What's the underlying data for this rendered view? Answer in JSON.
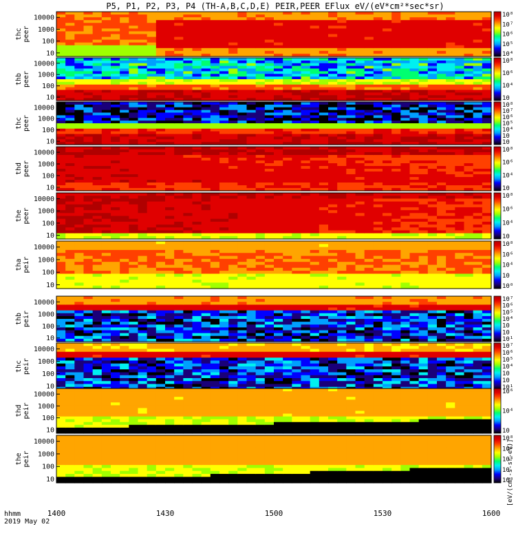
{
  "figure": {
    "title": "P5, P1, P2, P3, P4 (TH-A,B,C,D,E) PEIR,PEER EFlux eV/(eV*cm²*sec*sr)",
    "time_label_1": "hhmm",
    "time_label_2": "2019 May 02",
    "colorbar_unit_label": "[eV/(cm²-s-sr-eV)]",
    "colorbar_unit_label_electrons": "eV/(cm²-s-sr-eV)"
  },
  "colormap": [
    "#000000",
    "#1a007a",
    "#0000ff",
    "#00a0ff",
    "#00f0f0",
    "#00ff70",
    "#a0ff00",
    "#ffff00",
    "#ffa500",
    "#ff4000",
    "#e00000",
    "#b00000"
  ],
  "chart_data": [
    {
      "type": "heatmap",
      "ylabel": "thc\npeer",
      "y_ticks": [
        10,
        100,
        1000,
        10000
      ],
      "ylim": [
        5,
        30000
      ],
      "x_ticks": [
        "1400",
        "1430",
        "1500",
        "1530",
        "1600"
      ],
      "colorbar_ticks": [
        "10⁸",
        "10⁷",
        "10⁶",
        "10⁵",
        "10⁴"
      ],
      "ylog": true
    },
    {
      "type": "heatmap",
      "ylabel": "thb\npeer",
      "y_ticks": [
        10,
        100,
        1000,
        10000
      ],
      "ylim": [
        5,
        30000
      ],
      "x_ticks": [
        "1400",
        "1430",
        "1500",
        "1530",
        "1600"
      ],
      "colorbar_ticks": [
        "10⁸",
        "10⁶",
        "10⁴",
        "10⁲"
      ],
      "ylog": true
    },
    {
      "type": "heatmap",
      "ylabel": "thc\npeer",
      "y_ticks": [
        10,
        100,
        1000,
        10000
      ],
      "ylim": [
        5,
        30000
      ],
      "x_ticks": [
        "1400",
        "1430",
        "1500",
        "1530",
        "1600"
      ],
      "colorbar_ticks": [
        "10⁸",
        "10⁷",
        "10⁶",
        "10⁵",
        "10⁴",
        "10⁳",
        "10⁲"
      ],
      "ylog": true
    },
    {
      "type": "heatmap",
      "ylabel": "thd\npeer",
      "y_ticks": [
        10,
        100,
        1000,
        10000
      ],
      "ylim": [
        5,
        30000
      ],
      "x_ticks": [
        "1400",
        "1430",
        "1500",
        "1530",
        "1600"
      ],
      "colorbar_ticks": [
        "10⁸",
        "10⁶",
        "10⁴",
        "10⁲"
      ],
      "ylog": true
    },
    {
      "type": "heatmap",
      "ylabel": "the\npeer",
      "y_ticks": [
        10,
        100,
        1000,
        10000
      ],
      "ylim": [
        5,
        30000
      ],
      "x_ticks": [
        "1400",
        "1430",
        "1500",
        "1530",
        "1600"
      ],
      "colorbar_ticks": [
        "10⁸",
        "10⁶",
        "10⁴",
        "10⁲"
      ],
      "ylog": true
    },
    {
      "type": "heatmap",
      "ylabel": "tha\npeir",
      "y_ticks": [
        10,
        100,
        1000,
        10000
      ],
      "ylim": [
        5,
        30000
      ],
      "x_ticks": [
        "1400",
        "1430",
        "1500",
        "1530",
        "1600"
      ],
      "colorbar_ticks": [
        "10⁸",
        "10⁶",
        "10⁴",
        "10⁲",
        "10⁰"
      ],
      "ylog": true
    },
    {
      "type": "heatmap",
      "ylabel": "thb\npeir",
      "y_ticks": [
        10,
        100,
        1000,
        10000
      ],
      "ylim": [
        5,
        30000
      ],
      "x_ticks": [
        "1400",
        "1430",
        "1500",
        "1530",
        "1600"
      ],
      "colorbar_ticks": [
        "10⁷",
        "10⁶",
        "10⁵",
        "10⁴",
        "10⁳",
        "10⁲",
        "10¹"
      ],
      "ylog": true
    },
    {
      "type": "heatmap",
      "ylabel": "thc\npeir",
      "y_ticks": [
        10,
        100,
        1000,
        10000
      ],
      "ylim": [
        5,
        30000
      ],
      "x_ticks": [
        "1400",
        "1430",
        "1500",
        "1530",
        "1600"
      ],
      "colorbar_ticks": [
        "10⁷",
        "10⁶",
        "10⁵",
        "10⁴",
        "10⁳",
        "10⁲",
        "10¹"
      ],
      "ylog": true
    },
    {
      "type": "heatmap",
      "ylabel": "thd\npeir",
      "y_ticks": [
        10,
        100,
        1000,
        10000
      ],
      "ylim": [
        5,
        30000
      ],
      "x_ticks": [
        "1400",
        "1430",
        "1500",
        "1530",
        "1600"
      ],
      "colorbar_ticks": [
        "10⁶",
        "10⁴",
        "10⁲"
      ],
      "ylog": true
    },
    {
      "type": "heatmap",
      "ylabel": "the\npeir",
      "y_ticks": [
        10,
        100,
        1000,
        10000
      ],
      "ylim": [
        5,
        30000
      ],
      "x_ticks": [
        "1400",
        "1430",
        "1500",
        "1530",
        "1600"
      ],
      "colorbar_ticks": [
        "10⁸",
        "10⁶",
        "10⁴",
        "10⁲",
        "10⁰"
      ],
      "ylog": true
    }
  ]
}
